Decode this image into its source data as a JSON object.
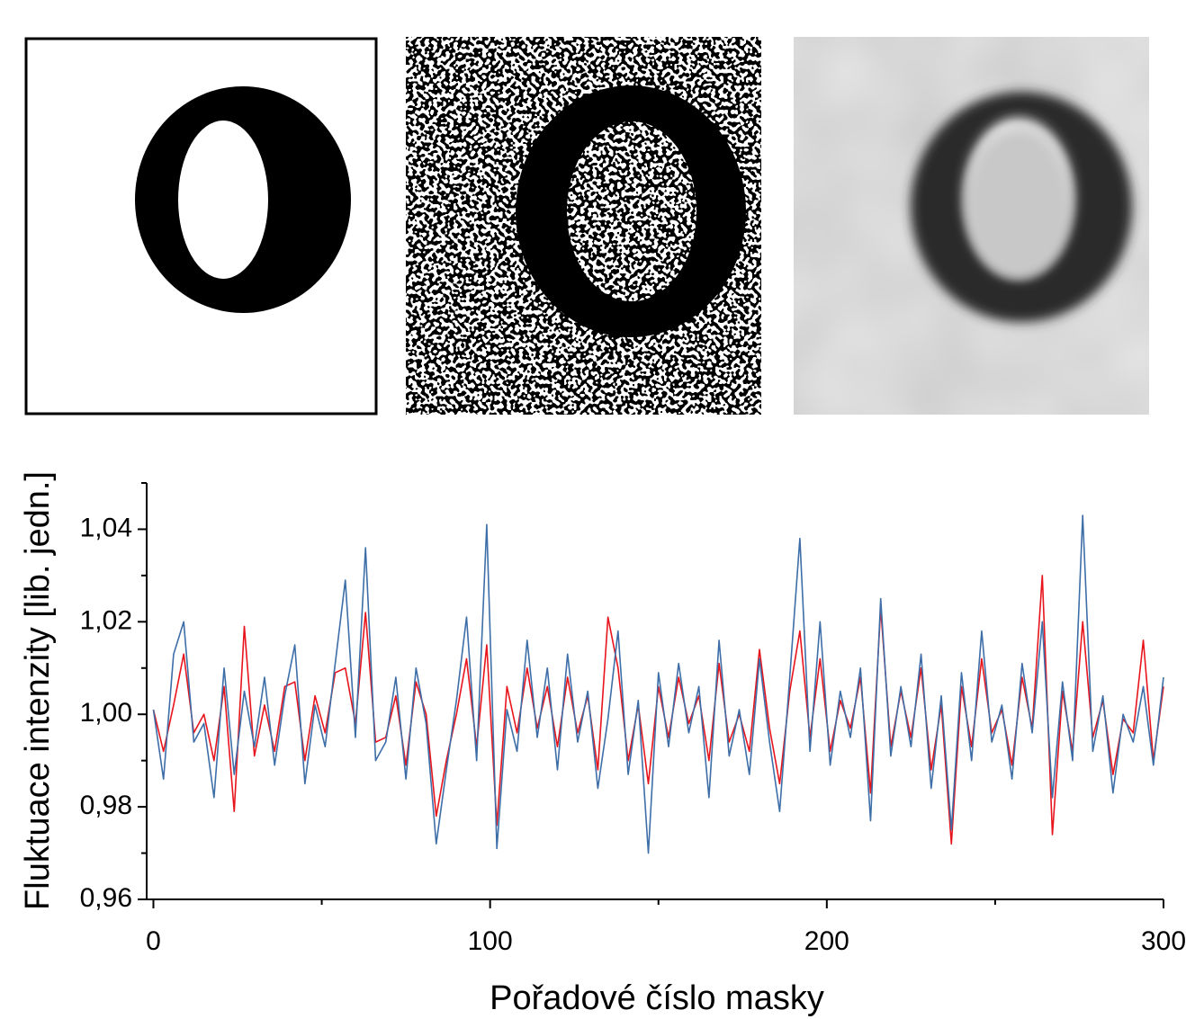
{
  "chart_data": {
    "type": "line",
    "xlabel": "Pořadové číslo masky",
    "ylabel": "Fluktuace intenzity [lib. jedn.]",
    "x": [
      0,
      3,
      6,
      9,
      12,
      15,
      18,
      21,
      24,
      27,
      30,
      33,
      36,
      39,
      42,
      45,
      48,
      51,
      54,
      57,
      60,
      63,
      66,
      69,
      72,
      75,
      78,
      81,
      84,
      87,
      90,
      93,
      96,
      99,
      102,
      105,
      108,
      111,
      114,
      117,
      120,
      123,
      126,
      129,
      132,
      135,
      138,
      141,
      144,
      147,
      150,
      153,
      156,
      159,
      162,
      165,
      168,
      171,
      174,
      177,
      180,
      183,
      186,
      189,
      192,
      195,
      198,
      201,
      204,
      207,
      210,
      213,
      216,
      219,
      222,
      225,
      228,
      231,
      234,
      237,
      240,
      243,
      246,
      249,
      252,
      255,
      258,
      261,
      264,
      267,
      270,
      273,
      276,
      279,
      282,
      285,
      288,
      291,
      294,
      297,
      300
    ],
    "series": [
      {
        "color": "#e8141c",
        "values": [
          1.001,
          0.992,
          1.002,
          1.013,
          0.996,
          1.0,
          0.99,
          1.006,
          0.979,
          1.019,
          0.991,
          1.002,
          0.992,
          1.006,
          1.007,
          0.99,
          1.004,
          0.996,
          1.009,
          1.01,
          0.998,
          1.022,
          0.994,
          0.995,
          1.004,
          0.989,
          1.007,
          1.0,
          0.978,
          0.99,
          1.0,
          1.012,
          0.993,
          1.015,
          0.976,
          1.006,
          0.996,
          1.01,
          0.997,
          1.006,
          0.993,
          1.008,
          0.996,
          1.004,
          0.988,
          1.021,
          1.01,
          0.99,
          1.002,
          0.985,
          1.006,
          0.995,
          1.008,
          0.998,
          1.004,
          0.99,
          1.011,
          0.994,
          1.0,
          0.992,
          1.014,
          0.997,
          0.985,
          1.005,
          1.018,
          0.995,
          1.012,
          0.992,
          1.003,
          0.997,
          1.008,
          0.983,
          1.023,
          0.993,
          1.005,
          0.995,
          1.01,
          0.988,
          1.002,
          0.972,
          1.006,
          0.993,
          1.012,
          0.996,
          1.001,
          0.989,
          1.008,
          0.997,
          1.03,
          0.974,
          1.005,
          0.992,
          1.02,
          0.995,
          1.003,
          0.987,
          0.999,
          0.996,
          1.016,
          0.99,
          1.006
        ]
      },
      {
        "color": "#3d6ea8",
        "values": [
          1.001,
          0.986,
          1.013,
          1.02,
          0.994,
          0.998,
          0.982,
          1.01,
          0.987,
          1.005,
          0.993,
          1.008,
          0.989,
          1.004,
          1.015,
          0.985,
          1.002,
          0.993,
          1.011,
          1.029,
          0.995,
          1.036,
          0.99,
          0.994,
          1.008,
          0.986,
          1.01,
          0.998,
          0.972,
          0.988,
          1.003,
          1.021,
          0.99,
          1.041,
          0.971,
          1.001,
          0.992,
          1.016,
          0.995,
          1.01,
          0.988,
          1.013,
          0.994,
          1.005,
          0.984,
          0.999,
          1.018,
          0.987,
          1.003,
          0.97,
          1.009,
          0.993,
          1.011,
          0.996,
          1.006,
          0.982,
          1.016,
          0.991,
          1.001,
          0.987,
          1.012,
          0.994,
          0.979,
          1.008,
          1.038,
          0.992,
          1.02,
          0.989,
          1.005,
          0.995,
          1.01,
          0.977,
          1.025,
          0.991,
          1.006,
          0.993,
          1.013,
          0.984,
          1.004,
          0.975,
          1.009,
          0.99,
          1.018,
          0.994,
          1.002,
          0.986,
          1.011,
          0.996,
          1.02,
          0.982,
          1.007,
          0.99,
          1.043,
          0.992,
          1.004,
          0.983,
          1.0,
          0.994,
          1.006,
          0.989,
          1.008
        ]
      }
    ],
    "xlim": [
      -2,
      300
    ],
    "ylim": [
      0.96,
      1.05
    ],
    "xticks": [
      0,
      100,
      200,
      300
    ],
    "xminorticks": [
      50,
      150,
      250
    ],
    "yticks": [
      {
        "value": 0.96,
        "label": "0,96"
      },
      {
        "value": 0.98,
        "label": "0,98"
      },
      {
        "value": 1.0,
        "label": "1,00"
      },
      {
        "value": 1.02,
        "label": "1,02"
      },
      {
        "value": 1.04,
        "label": "1,04"
      }
    ],
    "yminorticks": [
      0.97,
      0.99,
      1.01,
      1.03,
      1.05
    ]
  }
}
